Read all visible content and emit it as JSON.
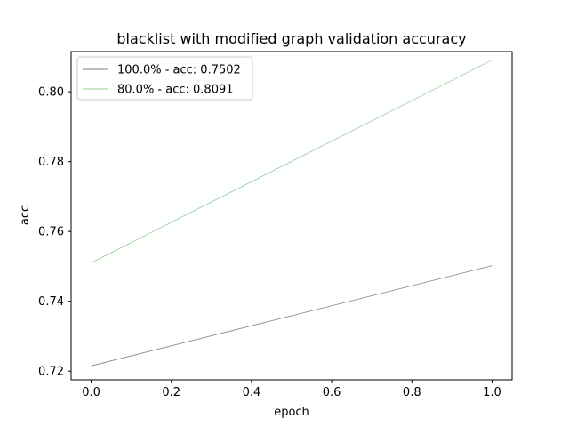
{
  "chart_data": {
    "type": "line",
    "title": "blacklist with modified graph validation accuracy",
    "xlabel": "epoch",
    "ylabel": "acc",
    "xlim": [
      -0.05,
      1.05
    ],
    "ylim": [
      0.7175,
      0.8115
    ],
    "xticks": [
      0.0,
      0.2,
      0.4,
      0.6,
      0.8,
      1.0
    ],
    "xtick_labels": [
      "0.0",
      "0.2",
      "0.4",
      "0.6",
      "0.8",
      "1.0"
    ],
    "yticks": [
      0.72,
      0.74,
      0.76,
      0.78,
      0.8
    ],
    "ytick_labels": [
      "0.72",
      "0.74",
      "0.76",
      "0.78",
      "0.80"
    ],
    "grid": false,
    "legend_position": "top-left",
    "series": [
      {
        "name": "100.0% - acc: 0.7502",
        "color": "#7f7f7f",
        "x": [
          0.0,
          1.0
        ],
        "y": [
          0.7215,
          0.7502
        ]
      },
      {
        "name": "80.0% - acc: 0.8091",
        "color": "#8fd18f",
        "x": [
          0.0,
          1.0
        ],
        "y": [
          0.751,
          0.8091
        ]
      }
    ]
  }
}
